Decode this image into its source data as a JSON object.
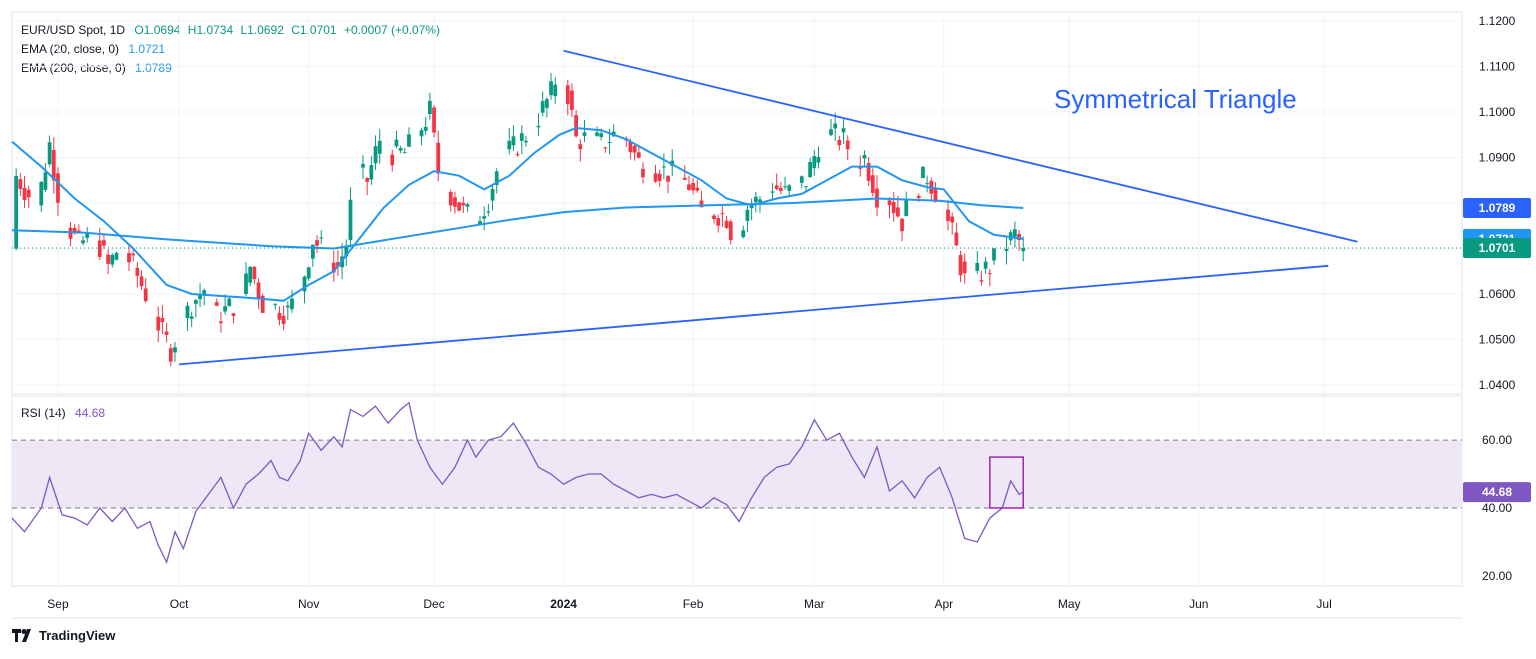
{
  "header": {
    "symbol": "EUR/USD Spot, 1D",
    "open": "O1.0694",
    "high": "H1.0734",
    "low": "L1.0692",
    "close": "C1.0701",
    "change": "+0.0007 (+0.07%)"
  },
  "ema20": {
    "label": "EMA (20, close, 0)",
    "value": "1.0721",
    "color": "#2196f3"
  },
  "ema200": {
    "label": "EMA (200, close, 0)",
    "value": "1.0789",
    "color": "#2196f3"
  },
  "rsi": {
    "label": "RSI (14)",
    "value": "44.68",
    "color": "#7e57c2"
  },
  "annotation": "Symmetrical Triangle",
  "brand": "TradingView",
  "colors": {
    "up": "#089981",
    "down": "#f23645",
    "trend": "#2962ff",
    "ema": "#2196f3",
    "rsi": "#7e57c2",
    "band": "#ede7f6"
  },
  "chart_data": [
    {
      "type": "candlestick",
      "title": "EUR/USD Spot, 1D",
      "ylim": [
        1.038,
        1.122
      ],
      "yticks": [
        "1.1200",
        "1.1100",
        "1.1000",
        "1.0900",
        "1.0800",
        "1.0700",
        "1.0600",
        "1.0500",
        "1.0400"
      ],
      "ytick_values": [
        1.12,
        1.11,
        1.1,
        1.09,
        1.08,
        1.07,
        1.06,
        1.05,
        1.04
      ],
      "xticks": [
        "Sep",
        "Oct",
        "Nov",
        "Dec",
        "2024",
        "Feb",
        "Mar",
        "Apr",
        "May",
        "Jun",
        "Jul"
      ],
      "xtick_days": [
        4,
        33,
        64,
        94,
        125,
        156,
        185,
        216,
        246,
        277,
        307
      ],
      "x_range_days": [
        -7,
        340
      ],
      "price_labels": [
        {
          "text": "1.0789",
          "value": 1.0789,
          "color": "#2962ff"
        },
        {
          "text": "1.0721",
          "value": 1.0721,
          "color": "#2196f3"
        },
        {
          "text": "1.0701",
          "value": 1.0701,
          "color": "#089981"
        }
      ],
      "last_price": 1.0701,
      "candles_anchor": [
        [
          -6,
          1.086
        ],
        [
          -1,
          1.079
        ],
        [
          2,
          1.093
        ],
        [
          5,
          1.077
        ],
        [
          9,
          1.071
        ],
        [
          13,
          1.073
        ],
        [
          16,
          1.066
        ],
        [
          19,
          1.071
        ],
        [
          23,
          1.064
        ],
        [
          26,
          1.058
        ],
        [
          29,
          1.051
        ],
        [
          31,
          1.048
        ],
        [
          33,
          1.052
        ],
        [
          36,
          1.058
        ],
        [
          39,
          1.061
        ],
        [
          42,
          1.055
        ],
        [
          45,
          1.057
        ],
        [
          48,
          1.059
        ],
        [
          50,
          1.066
        ],
        [
          53,
          1.058
        ],
        [
          56,
          1.057
        ],
        [
          59,
          1.056
        ],
        [
          62,
          1.061
        ],
        [
          65,
          1.072
        ],
        [
          68,
          1.069
        ],
        [
          71,
          1.066
        ],
        [
          73,
          1.071
        ],
        [
          75,
          1.087
        ],
        [
          78,
          1.085
        ],
        [
          81,
          1.094
        ],
        [
          84,
          1.091
        ],
        [
          87,
          1.091
        ],
        [
          90,
          1.095
        ],
        [
          93,
          1.1
        ],
        [
          95,
          1.087
        ],
        [
          98,
          1.082
        ],
        [
          101,
          1.078
        ],
        [
          104,
          1.076
        ],
        [
          107,
          1.081
        ],
        [
          110,
          1.09
        ],
        [
          113,
          1.092
        ],
        [
          116,
          1.095
        ],
        [
          119,
          1.099
        ],
        [
          122,
          1.104
        ],
        [
          124,
          1.11
        ],
        [
          126,
          1.104
        ],
        [
          128,
          1.094
        ],
        [
          131,
          1.094
        ],
        [
          134,
          1.093
        ],
        [
          137,
          1.095
        ],
        [
          140,
          1.094
        ],
        [
          143,
          1.089
        ],
        [
          146,
          1.088
        ],
        [
          149,
          1.087
        ],
        [
          152,
          1.086
        ],
        [
          155,
          1.084
        ],
        [
          158,
          1.078
        ],
        [
          161,
          1.078
        ],
        [
          164,
          1.077
        ],
        [
          166,
          1.071
        ],
        [
          169,
          1.079
        ],
        [
          172,
          1.081
        ],
        [
          175,
          1.084
        ],
        [
          178,
          1.082
        ],
        [
          180,
          1.083
        ],
        [
          183,
          1.085
        ],
        [
          186,
          1.093
        ],
        [
          189,
          1.095
        ],
        [
          192,
          1.094
        ],
        [
          195,
          1.089
        ],
        [
          197,
          1.09
        ],
        [
          200,
          1.082
        ],
        [
          203,
          1.081
        ],
        [
          206,
          1.076
        ],
        [
          209,
          1.083
        ],
        [
          212,
          1.086
        ],
        [
          215,
          1.081
        ],
        [
          218,
          1.073
        ],
        [
          221,
          1.063
        ],
        [
          224,
          1.064
        ],
        [
          227,
          1.066
        ],
        [
          230,
          1.07
        ],
        [
          233,
          1.073
        ],
        [
          235,
          1.07
        ]
      ],
      "series": [
        {
          "name": "EMA (20, close, 0)",
          "points": [
            [
              -7,
              1.0935
            ],
            [
              0,
              1.088
            ],
            [
              8,
              1.081
            ],
            [
              15,
              1.076
            ],
            [
              22,
              1.07
            ],
            [
              30,
              1.062
            ],
            [
              36,
              1.06
            ],
            [
              44,
              1.0595
            ],
            [
              52,
              1.059
            ],
            [
              58,
              1.0585
            ],
            [
              64,
              1.062
            ],
            [
              70,
              1.065
            ],
            [
              76,
              1.072
            ],
            [
              82,
              1.079
            ],
            [
              88,
              1.084
            ],
            [
              94,
              1.087
            ],
            [
              100,
              1.086
            ],
            [
              106,
              1.083
            ],
            [
              112,
              1.086
            ],
            [
              118,
              1.091
            ],
            [
              124,
              1.095
            ],
            [
              128,
              1.0965
            ],
            [
              134,
              1.096
            ],
            [
              140,
              1.094
            ],
            [
              146,
              1.091
            ],
            [
              152,
              1.088
            ],
            [
              158,
              1.085
            ],
            [
              164,
              1.081
            ],
            [
              170,
              1.0795
            ],
            [
              176,
              1.081
            ],
            [
              182,
              1.082
            ],
            [
              188,
              1.085
            ],
            [
              194,
              1.088
            ],
            [
              200,
              1.088
            ],
            [
              206,
              1.085
            ],
            [
              212,
              1.0835
            ],
            [
              216,
              1.083
            ],
            [
              222,
              1.076
            ],
            [
              228,
              1.073
            ],
            [
              235,
              1.0721
            ]
          ]
        },
        {
          "name": "EMA (200, close, 0)",
          "points": [
            [
              -7,
              1.074
            ],
            [
              10,
              1.0735
            ],
            [
              30,
              1.072
            ],
            [
              55,
              1.0705
            ],
            [
              70,
              1.07
            ],
            [
              90,
              1.073
            ],
            [
              110,
              1.076
            ],
            [
              125,
              1.078
            ],
            [
              140,
              1.079
            ],
            [
              160,
              1.0795
            ],
            [
              180,
              1.08
            ],
            [
              200,
              1.081
            ],
            [
              215,
              1.0805
            ],
            [
              225,
              1.0795
            ],
            [
              235,
              1.0789
            ]
          ]
        },
        {
          "name": "Symmetrical Triangle upper",
          "points": [
            [
              125,
              1.1135
            ],
            [
              315,
              1.0715
            ]
          ]
        },
        {
          "name": "Symmetrical Triangle lower",
          "points": [
            [
              33,
              1.0445
            ],
            [
              308,
              1.0662
            ]
          ]
        }
      ]
    },
    {
      "type": "line",
      "title": "RSI (14)",
      "ylim": [
        17,
        73
      ],
      "yticks": [
        "60.00",
        "40.00",
        "20.00"
      ],
      "ytick_values": [
        60,
        40,
        20
      ],
      "band": [
        40,
        60
      ],
      "last_value": 44.68,
      "series": [
        {
          "name": "RSI (14)",
          "points": [
            [
              -7,
              37
            ],
            [
              -4,
              33
            ],
            [
              0,
              40
            ],
            [
              2,
              49
            ],
            [
              5,
              38
            ],
            [
              8,
              37
            ],
            [
              11,
              35
            ],
            [
              14,
              40
            ],
            [
              17,
              36
            ],
            [
              20,
              40
            ],
            [
              23,
              34
            ],
            [
              26,
              36
            ],
            [
              28,
              29
            ],
            [
              30,
              24
            ],
            [
              32,
              33
            ],
            [
              34,
              28
            ],
            [
              37,
              39
            ],
            [
              40,
              44
            ],
            [
              43,
              49
            ],
            [
              46,
              40
            ],
            [
              49,
              47
            ],
            [
              52,
              50
            ],
            [
              55,
              54
            ],
            [
              57,
              49
            ],
            [
              59,
              48
            ],
            [
              62,
              54
            ],
            [
              64,
              62
            ],
            [
              67,
              57
            ],
            [
              70,
              61
            ],
            [
              72,
              58
            ],
            [
              74,
              69
            ],
            [
              77,
              67
            ],
            [
              80,
              70
            ],
            [
              83,
              65
            ],
            [
              86,
              69
            ],
            [
              88,
              71
            ],
            [
              90,
              60
            ],
            [
              93,
              52
            ],
            [
              96,
              47
            ],
            [
              99,
              52
            ],
            [
              102,
              60
            ],
            [
              104,
              55
            ],
            [
              107,
              60
            ],
            [
              110,
              61
            ],
            [
              113,
              65
            ],
            [
              116,
              59
            ],
            [
              119,
              52
            ],
            [
              122,
              50
            ],
            [
              125,
              47
            ],
            [
              128,
              49
            ],
            [
              131,
              50
            ],
            [
              134,
              50
            ],
            [
              137,
              47
            ],
            [
              140,
              45
            ],
            [
              143,
              43
            ],
            [
              146,
              44
            ],
            [
              149,
              43
            ],
            [
              152,
              44
            ],
            [
              155,
              42
            ],
            [
              158,
              40
            ],
            [
              161,
              43
            ],
            [
              164,
              41
            ],
            [
              167,
              36
            ],
            [
              170,
              43
            ],
            [
              173,
              49
            ],
            [
              176,
              52
            ],
            [
              179,
              53
            ],
            [
              182,
              58
            ],
            [
              185,
              66
            ],
            [
              188,
              60
            ],
            [
              191,
              62
            ],
            [
              194,
              55
            ],
            [
              197,
              49
            ],
            [
              200,
              58
            ],
            [
              203,
              45
            ],
            [
              206,
              48
            ],
            [
              209,
              43
            ],
            [
              212,
              49
            ],
            [
              215,
              52
            ],
            [
              218,
              43
            ],
            [
              221,
              31
            ],
            [
              224,
              30
            ],
            [
              227,
              37
            ],
            [
              230,
              40
            ],
            [
              232,
              48
            ],
            [
              234,
              44
            ],
            [
              235,
              44.68
            ]
          ]
        }
      ],
      "annotation_box": {
        "x": [
          227,
          235
        ],
        "y": [
          40,
          55
        ]
      }
    }
  ]
}
